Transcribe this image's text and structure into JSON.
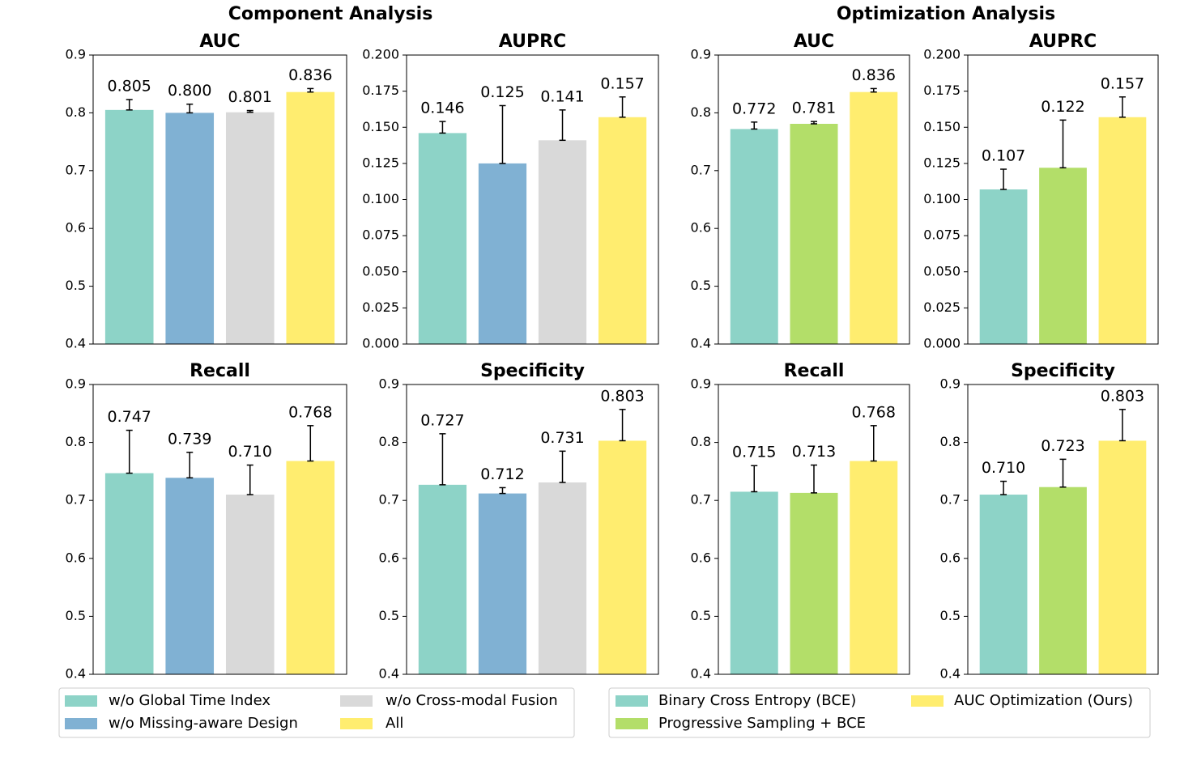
{
  "groups": [
    {
      "title": "Component Analysis",
      "legend": [
        {
          "name": "w/o Global Time Index",
          "color": "#8dd3c7"
        },
        {
          "name": "w/o Missing-aware Design",
          "color": "#80b1d3"
        },
        {
          "name": "w/o Cross-modal Fusion",
          "color": "#d9d9d9"
        },
        {
          "name": "All",
          "color": "#ffed6f"
        }
      ]
    },
    {
      "title": "Optimization Analysis",
      "legend": [
        {
          "name": "Binary Cross Entropy (BCE)",
          "color": "#8dd3c7"
        },
        {
          "name": "Progressive Sampling + BCE",
          "color": "#b3de69"
        },
        {
          "name": "AUC Optimization (Ours)",
          "color": "#ffed6f"
        }
      ]
    }
  ],
  "chart_data": [
    {
      "type": "bar",
      "title": "AUC",
      "categories": [
        null,
        null,
        null,
        null
      ],
      "values": [
        0.805,
        0.8,
        0.801,
        0.836
      ],
      "value_labels": [
        "0.805",
        "0.800",
        "0.801",
        "0.836"
      ],
      "errors": [
        0.018,
        0.015,
        0.003,
        0.006
      ],
      "colors": [
        "#8dd3c7",
        "#80b1d3",
        "#d9d9d9",
        "#ffed6f"
      ],
      "ylim": [
        0.4,
        0.9
      ],
      "yticks": [
        0.4,
        0.5,
        0.6,
        0.7,
        0.8,
        0.9
      ]
    },
    {
      "type": "bar",
      "title": "AUPRC",
      "categories": [
        null,
        null,
        null,
        null
      ],
      "values": [
        0.146,
        0.125,
        0.141,
        0.157
      ],
      "value_labels": [
        "0.146",
        "0.125",
        "0.141",
        "0.157"
      ],
      "errors": [
        0.008,
        0.04,
        0.021,
        0.014
      ],
      "colors": [
        "#8dd3c7",
        "#80b1d3",
        "#d9d9d9",
        "#ffed6f"
      ],
      "ylim": [
        0,
        0.2
      ],
      "yticks": [
        {
          "value": 0,
          "label": "0.000"
        },
        {
          "value": 0.025,
          "label": "0.025"
        },
        {
          "value": 0.05,
          "label": "0.050"
        },
        {
          "value": 0.075,
          "label": "0.075"
        },
        {
          "value": 0.1,
          "label": "0.100"
        },
        {
          "value": 0.125,
          "label": "0.125"
        },
        {
          "value": 0.15,
          "label": "0.150"
        },
        {
          "value": 0.175,
          "label": "0.175"
        },
        {
          "value": 0.2,
          "label": "0.200"
        }
      ]
    },
    {
      "type": "bar",
      "title": "Recall",
      "categories": [
        null,
        null,
        null,
        null
      ],
      "values": [
        0.747,
        0.739,
        0.71,
        0.768
      ],
      "value_labels": [
        "0.747",
        "0.739",
        "0.710",
        "0.768"
      ],
      "errors": [
        0.074,
        0.044,
        0.051,
        0.061
      ],
      "colors": [
        "#8dd3c7",
        "#80b1d3",
        "#d9d9d9",
        "#ffed6f"
      ],
      "ylim": [
        0.4,
        0.9
      ],
      "yticks": [
        0.4,
        0.5,
        0.6,
        0.7,
        0.8,
        0.9
      ]
    },
    {
      "type": "bar",
      "title": "Specificity",
      "categories": [
        null,
        null,
        null,
        null
      ],
      "values": [
        0.727,
        0.712,
        0.731,
        0.803
      ],
      "value_labels": [
        "0.727",
        "0.712",
        "0.731",
        "0.803"
      ],
      "errors": [
        0.088,
        0.01,
        0.054,
        0.054
      ],
      "colors": [
        "#8dd3c7",
        "#80b1d3",
        "#d9d9d9",
        "#ffed6f"
      ],
      "ylim": [
        0.4,
        0.9
      ],
      "yticks": [
        0.4,
        0.5,
        0.6,
        0.7,
        0.8,
        0.9
      ]
    },
    {
      "type": "bar",
      "title": "AUC",
      "categories": [
        null,
        null,
        null
      ],
      "values": [
        0.772,
        0.781,
        0.836
      ],
      "value_labels": [
        "0.772",
        "0.781",
        "0.836"
      ],
      "errors": [
        0.012,
        0.004,
        0.006
      ],
      "colors": [
        "#8dd3c7",
        "#b3de69",
        "#ffed6f"
      ],
      "ylim": [
        0.4,
        0.9
      ],
      "yticks": [
        0.4,
        0.5,
        0.6,
        0.7,
        0.8,
        0.9
      ]
    },
    {
      "type": "bar",
      "title": "AUPRC",
      "categories": [
        null,
        null,
        null
      ],
      "values": [
        0.107,
        0.122,
        0.157
      ],
      "value_labels": [
        "0.107",
        "0.122",
        "0.157"
      ],
      "errors": [
        0.014,
        0.033,
        0.014
      ],
      "colors": [
        "#8dd3c7",
        "#b3de69",
        "#ffed6f"
      ],
      "ylim": [
        0,
        0.2
      ],
      "yticks": [
        {
          "value": 0,
          "label": "0.000"
        },
        {
          "value": 0.025,
          "label": "0.025"
        },
        {
          "value": 0.05,
          "label": "0.050"
        },
        {
          "value": 0.075,
          "label": "0.075"
        },
        {
          "value": 0.1,
          "label": "0.100"
        },
        {
          "value": 0.125,
          "label": "0.125"
        },
        {
          "value": 0.15,
          "label": "0.150"
        },
        {
          "value": 0.175,
          "label": "0.175"
        },
        {
          "value": 0.2,
          "label": "0.200"
        }
      ]
    },
    {
      "type": "bar",
      "title": "Recall",
      "categories": [
        null,
        null,
        null
      ],
      "values": [
        0.715,
        0.713,
        0.768
      ],
      "value_labels": [
        "0.715",
        "0.713",
        "0.768"
      ],
      "errors": [
        0.045,
        0.048,
        0.061
      ],
      "colors": [
        "#8dd3c7",
        "#b3de69",
        "#ffed6f"
      ],
      "ylim": [
        0.4,
        0.9
      ],
      "yticks": [
        0.4,
        0.5,
        0.6,
        0.7,
        0.8,
        0.9
      ]
    },
    {
      "type": "bar",
      "title": "Specificity",
      "categories": [
        null,
        null,
        null
      ],
      "values": [
        0.71,
        0.723,
        0.803
      ],
      "value_labels": [
        "0.710",
        "0.723",
        "0.803"
      ],
      "errors": [
        0.023,
        0.048,
        0.054
      ],
      "colors": [
        "#8dd3c7",
        "#b3de69",
        "#ffed6f"
      ],
      "ylim": [
        0.4,
        0.9
      ],
      "yticks": [
        0.4,
        0.5,
        0.6,
        0.7,
        0.8,
        0.9
      ]
    }
  ]
}
